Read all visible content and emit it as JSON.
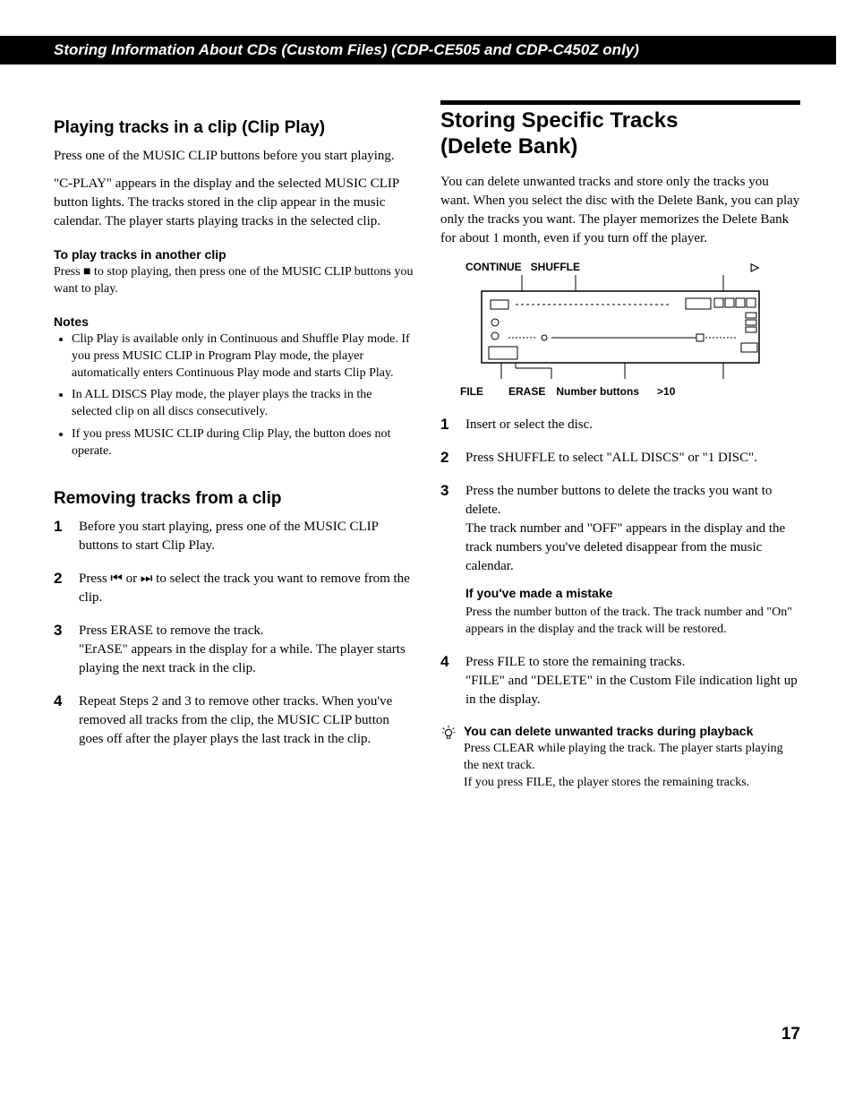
{
  "banner": "Storing Information About CDs (Custom Files) (CDP-CE505 and CDP-C450Z only)",
  "left": {
    "h1": "Playing tracks in a clip (Clip Play)",
    "p1": "Press one of the MUSIC CLIP buttons before you start playing.",
    "p2": "\"C-PLAY\" appears in the display and the selected MUSIC CLIP button lights. The tracks stored in the clip appear in the music calendar. The player starts playing tracks in the selected clip.",
    "sub1_title": "To play tracks in another clip",
    "sub1_body": "Press ■ to stop playing, then press one of the MUSIC CLIP buttons you want to play.",
    "notes_title": "Notes",
    "notes": [
      "Clip Play is available only in Continuous and Shuffle Play mode. If you press MUSIC CLIP in Program Play mode, the player automatically enters Continuous Play mode and starts Clip Play.",
      "In ALL DISCS Play mode, the player plays the tracks in the selected clip on all discs consecutively.",
      "If you press MUSIC CLIP during Clip Play, the button does not operate."
    ],
    "h2": "Removing tracks from a clip",
    "steps": [
      "Before you start playing, press one of the MUSIC CLIP buttons to start Clip Play.",
      "Press ⏮ or ⏭ to select the track you want to remove from the clip.",
      "Press ERASE to remove the track.\n\"ErASE\" appears in the display for a while. The player starts playing the next track in the clip.",
      "Repeat Steps 2 and 3 to remove other tracks. When you've removed all tracks from the clip, the MUSIC CLIP button goes off after the player plays the last track in the clip."
    ]
  },
  "right": {
    "h1_line1": "Storing Specific Tracks",
    "h1_line2": "(Delete Bank)",
    "intro": "You can delete unwanted tracks and store only the tracks you want. When you select the disc with the Delete Bank, you can play only the tracks you want. The player memorizes the Delete Bank for about 1 month, even if you turn off the player.",
    "diagram": {
      "top_labels": [
        "CONTINUE",
        "SHUFFLE",
        "▷"
      ],
      "bottom_labels": [
        "FILE",
        "ERASE",
        "Number buttons",
        ">10"
      ]
    },
    "steps": [
      {
        "body": "Insert or select the disc."
      },
      {
        "body": "Press SHUFFLE to select \"ALL DISCS\" or \"1 DISC\"."
      },
      {
        "body": "Press the number buttons to delete the tracks you want to delete.\nThe track number and \"OFF\" appears in the display and the track numbers you've deleted disappear from the music calendar.",
        "sub_title": "If you've made a mistake",
        "sub_body": "Press the number button of the track. The track number and \"On\" appears in the display and the track will be restored."
      },
      {
        "body": "Press FILE to store the remaining tracks.\n\"FILE\" and \"DELETE\" in the Custom File indication light up in the display."
      }
    ],
    "tip_title": "You can delete unwanted tracks during playback",
    "tip_body": "Press CLEAR while playing the track. The player starts playing the next track.\nIf you press FILE, the player stores the remaining tracks."
  },
  "page_number": "17"
}
